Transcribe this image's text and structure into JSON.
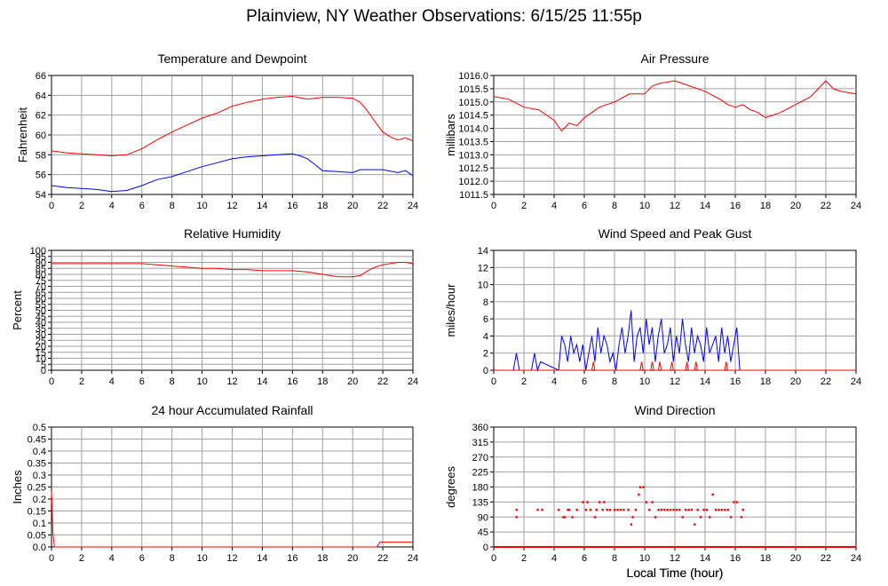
{
  "title": "Plainview, NY Weather Observations: 6/15/25 11:55p",
  "x_axis_label": "Local Time (hour)",
  "chart_data": [
    {
      "id": "temp",
      "type": "line",
      "title": "Temperature and Dewpoint",
      "ylabel": "Fahrenheit",
      "xlabel": "",
      "xlim": [
        0,
        24
      ],
      "ylim": [
        54,
        66
      ],
      "xticks": [
        "0",
        "2",
        "4",
        "6",
        "8",
        "10",
        "12",
        "14",
        "16",
        "18",
        "20",
        "22",
        "24"
      ],
      "yticks": [
        "54",
        "56",
        "58",
        "60",
        "62",
        "64",
        "66"
      ],
      "grid": true,
      "series": [
        {
          "color": "#ff0000",
          "x": [
            0,
            1,
            2,
            3,
            4,
            5,
            6,
            7,
            8,
            9,
            10,
            11,
            12,
            13,
            14,
            15,
            16,
            17,
            18,
            19,
            20,
            20.5,
            21,
            21.5,
            22,
            22.5,
            23,
            23.5,
            24
          ],
          "y": [
            58.4,
            58.2,
            58.1,
            58.0,
            57.9,
            58.0,
            58.6,
            59.5,
            60.3,
            61.0,
            61.7,
            62.2,
            62.9,
            63.3,
            63.6,
            63.8,
            63.9,
            63.6,
            63.8,
            63.8,
            63.7,
            63.3,
            62.4,
            61.3,
            60.3,
            59.8,
            59.5,
            59.7,
            59.4
          ]
        },
        {
          "color": "#0000ff",
          "x": [
            0,
            1,
            2,
            3,
            4,
            5,
            6,
            7,
            8,
            9,
            10,
            11,
            12,
            13,
            14,
            15,
            16,
            16.5,
            17,
            17.5,
            18,
            19,
            20,
            20.5,
            21,
            22,
            23,
            23.5,
            24
          ],
          "y": [
            54.9,
            54.7,
            54.6,
            54.5,
            54.3,
            54.4,
            54.9,
            55.5,
            55.8,
            56.3,
            56.8,
            57.2,
            57.6,
            57.8,
            57.9,
            58.0,
            58.1,
            57.9,
            57.6,
            57.0,
            56.4,
            56.3,
            56.2,
            56.5,
            56.5,
            56.5,
            56.2,
            56.4,
            55.9
          ]
        }
      ]
    },
    {
      "id": "pressure",
      "type": "line",
      "title": "Air Pressure",
      "ylabel": "millibars",
      "xlabel": "",
      "xlim": [
        0,
        24
      ],
      "ylim": [
        1011.5,
        1016.0
      ],
      "xticks": [
        "0",
        "2",
        "4",
        "6",
        "8",
        "10",
        "12",
        "14",
        "16",
        "18",
        "20",
        "22",
        "24"
      ],
      "yticks": [
        "1011.5",
        "1012.0",
        "1012.5",
        "1013.0",
        "1013.5",
        "1014.0",
        "1014.5",
        "1015.0",
        "1015.5",
        "1016.0"
      ],
      "grid": true,
      "series": [
        {
          "color": "#ff0000",
          "x": [
            0,
            1,
            2,
            3,
            4,
            4.5,
            5,
            5.5,
            6,
            6.5,
            7,
            8,
            9,
            10,
            10.5,
            11,
            12,
            13,
            14,
            15,
            15.5,
            16,
            16.5,
            17,
            17.5,
            18,
            18.5,
            19,
            20,
            21,
            21.5,
            22,
            22.5,
            23,
            24
          ],
          "y": [
            1015.2,
            1015.1,
            1014.8,
            1014.7,
            1014.3,
            1013.9,
            1014.2,
            1014.1,
            1014.4,
            1014.6,
            1014.8,
            1015.0,
            1015.3,
            1015.3,
            1015.6,
            1015.7,
            1015.8,
            1015.6,
            1015.4,
            1015.1,
            1014.9,
            1014.8,
            1014.9,
            1014.7,
            1014.6,
            1014.4,
            1014.5,
            1014.6,
            1014.9,
            1015.2,
            1015.5,
            1015.8,
            1015.5,
            1015.4,
            1015.3
          ]
        }
      ]
    },
    {
      "id": "humidity",
      "type": "line",
      "title": "Relative Humidity",
      "ylabel": "Percent",
      "xlabel": "",
      "xlim": [
        0,
        24
      ],
      "ylim": [
        0,
        100
      ],
      "xticks": [
        "0",
        "2",
        "4",
        "6",
        "8",
        "10",
        "12",
        "14",
        "16",
        "18",
        "20",
        "22",
        "24"
      ],
      "yticks": [
        "0",
        "5",
        "10",
        "15",
        "20",
        "25",
        "30",
        "35",
        "40",
        "45",
        "50",
        "55",
        "60",
        "65",
        "70",
        "75",
        "80",
        "85",
        "90",
        "95",
        "100"
      ],
      "grid": true,
      "series": [
        {
          "color": "#ff0000",
          "x": [
            0,
            1,
            2,
            3,
            4,
            5,
            6,
            7,
            8,
            9,
            10,
            11,
            12,
            13,
            14,
            15,
            16,
            17,
            18,
            19,
            20,
            20.5,
            21,
            21.5,
            22,
            22.5,
            23,
            23.5,
            24
          ],
          "y": [
            89,
            89,
            89,
            89,
            89,
            89,
            89,
            88,
            87,
            86,
            85,
            85,
            84,
            84,
            83,
            83,
            83,
            82,
            80,
            78,
            78,
            79,
            83,
            86,
            88,
            89,
            90,
            90,
            89
          ]
        }
      ]
    },
    {
      "id": "wind",
      "type": "line",
      "title": "Wind Speed and Peak Gust",
      "ylabel": "miles/hour",
      "xlabel": "",
      "xlim": [
        0,
        24
      ],
      "ylim": [
        0,
        14
      ],
      "xticks": [
        "0",
        "2",
        "4",
        "6",
        "8",
        "10",
        "12",
        "14",
        "16",
        "18",
        "20",
        "22",
        "24"
      ],
      "yticks": [
        "0",
        "2",
        "4",
        "6",
        "8",
        "10",
        "12",
        "14"
      ],
      "grid": true,
      "series": [
        {
          "color": "#0000ff",
          "x": [
            0,
            1.3,
            1.5,
            1.7,
            2.5,
            2.7,
            2.9,
            3.1,
            4.3,
            4.5,
            4.7,
            4.9,
            5.1,
            5.3,
            5.5,
            5.7,
            5.9,
            6.1,
            6.3,
            6.5,
            6.7,
            6.9,
            7.1,
            7.3,
            7.5,
            7.7,
            7.9,
            8.1,
            8.3,
            8.5,
            8.7,
            8.9,
            9.1,
            9.3,
            9.5,
            9.7,
            9.9,
            10.1,
            10.3,
            10.5,
            10.7,
            10.9,
            11.1,
            11.3,
            11.5,
            11.7,
            11.9,
            12.1,
            12.3,
            12.5,
            12.7,
            12.9,
            13.1,
            13.3,
            13.5,
            13.7,
            13.9,
            14.1,
            14.3,
            14.5,
            14.7,
            14.9,
            15.1,
            15.3,
            15.5,
            15.7,
            15.9,
            16.1,
            16.3,
            16.5,
            24
          ],
          "y": [
            0,
            0,
            2,
            0,
            0,
            2,
            0,
            1,
            0,
            4,
            3,
            1,
            4,
            2,
            3,
            1,
            3,
            0,
            2,
            4,
            1,
            5,
            2,
            4,
            3,
            1,
            2,
            0,
            3,
            5,
            2,
            4,
            7,
            1,
            4,
            5,
            2,
            6,
            3,
            5,
            1,
            4,
            6,
            2,
            3,
            5,
            1,
            4,
            2,
            6,
            3,
            1,
            5,
            2,
            4,
            3,
            1,
            5,
            2,
            3,
            4,
            1,
            5,
            2,
            4,
            1,
            3,
            5,
            0,
            0,
            0
          ]
        },
        {
          "color": "#ff0000",
          "x": [
            0,
            6.5,
            6.6,
            6.7,
            9.7,
            9.8,
            9.9,
            10.4,
            10.5,
            10.6,
            10.9,
            11.0,
            11.1,
            11.7,
            11.8,
            11.9,
            12.7,
            12.8,
            12.9,
            13.3,
            13.4,
            13.5,
            15.3,
            15.4,
            15.5,
            24
          ],
          "y": [
            0,
            0,
            1,
            0,
            0,
            1,
            0,
            0,
            1,
            0,
            0,
            1,
            0,
            0,
            1,
            0,
            0,
            1,
            0,
            0,
            1,
            0,
            0,
            1,
            0,
            0
          ]
        }
      ]
    },
    {
      "id": "rain",
      "type": "line",
      "title": "24 hour Accumulated Rainfall",
      "ylabel": "Inches",
      "xlabel": "",
      "xlim": [
        0,
        24
      ],
      "ylim": [
        0,
        0.5
      ],
      "xticks": [
        "0",
        "2",
        "4",
        "6",
        "8",
        "10",
        "12",
        "14",
        "16",
        "18",
        "20",
        "22",
        "24"
      ],
      "yticks": [
        "0.0",
        "0.05",
        "0.1",
        "0.15",
        "0.2",
        "0.25",
        "0.3",
        "0.35",
        "0.4",
        "0.45",
        "0.5"
      ],
      "grid": true,
      "series": [
        {
          "color": "#ff0000",
          "x": [
            0,
            0.1,
            0.2,
            21.6,
            21.8,
            23,
            24
          ],
          "y": [
            0.23,
            0.05,
            0,
            0,
            0.02,
            0.02,
            0.02
          ]
        }
      ]
    },
    {
      "id": "direction",
      "type": "scatter",
      "title": "Wind Direction",
      "ylabel": "degrees",
      "xlabel": "Local Time (hour)",
      "xlim": [
        0,
        24
      ],
      "ylim": [
        0,
        360
      ],
      "xticks": [
        "0",
        "2",
        "4",
        "6",
        "8",
        "10",
        "12",
        "14",
        "16",
        "18",
        "20",
        "22",
        "24"
      ],
      "yticks": [
        "0",
        "45",
        "90",
        "135",
        "180",
        "225",
        "270",
        "315",
        "360"
      ],
      "grid": true,
      "baseline_zero": true,
      "series": [
        {
          "color": "#ff0000",
          "x": [
            1.5,
            1.5,
            2.9,
            3.2,
            4.3,
            4.6,
            4.7,
            4.9,
            5.0,
            5.2,
            5.5,
            5.9,
            6.1,
            6.2,
            6.4,
            6.7,
            6.8,
            7.0,
            7.2,
            7.3,
            7.5,
            7.7,
            8.0,
            8.2,
            8.4,
            8.6,
            8.9,
            9.1,
            9.2,
            9.4,
            9.6,
            9.7,
            9.9,
            10.1,
            10.3,
            10.5,
            10.7,
            10.9,
            11.1,
            11.3,
            11.5,
            11.7,
            11.9,
            12.1,
            12.3,
            12.5,
            12.7,
            12.9,
            13.1,
            13.3,
            13.5,
            13.7,
            13.9,
            14.1,
            14.3,
            14.5,
            14.7,
            14.9,
            15.1,
            15.3,
            15.5,
            15.7,
            15.9,
            16.1,
            16.4,
            16.5
          ],
          "y": [
            112,
            90,
            112,
            112,
            112,
            90,
            90,
            112,
            112,
            90,
            112,
            135,
            112,
            135,
            112,
            90,
            112,
            135,
            112,
            135,
            112,
            112,
            112,
            112,
            112,
            112,
            112,
            68,
            90,
            112,
            158,
            180,
            180,
            135,
            112,
            135,
            90,
            112,
            112,
            112,
            112,
            112,
            112,
            112,
            112,
            90,
            112,
            112,
            112,
            68,
            112,
            90,
            112,
            112,
            90,
            158,
            112,
            112,
            112,
            112,
            112,
            90,
            135,
            135,
            90,
            112
          ]
        }
      ]
    }
  ]
}
